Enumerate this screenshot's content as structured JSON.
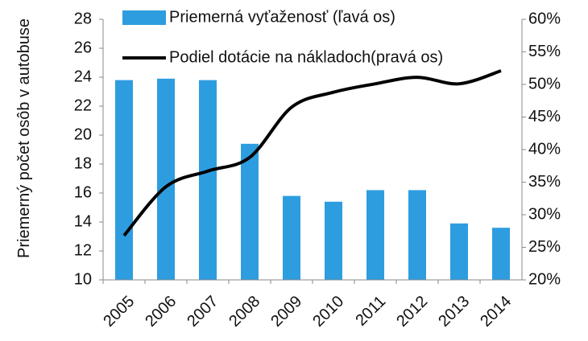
{
  "chart_data": {
    "type": "bar_line",
    "y_label": "Priemerný počet osôb v autobuse",
    "categories": [
      "2005",
      "2006",
      "2007",
      "2008",
      "2009",
      "2010",
      "2011",
      "2012",
      "2013",
      "2014"
    ],
    "series": [
      {
        "name": "Priemerná vyťaženosť (ľavá os)",
        "type": "bar",
        "color": "#2e9de0",
        "axis": "y",
        "values": [
          23.8,
          23.9,
          23.8,
          19.4,
          15.8,
          15.4,
          16.2,
          16.2,
          13.9,
          13.6
        ]
      },
      {
        "name": "Podiel dotácie na nákladoch(pravá os)",
        "type": "line",
        "color": "#000000",
        "axis": "y2",
        "values": [
          26.8,
          34.3,
          36.7,
          38.8,
          46.5,
          48.8,
          50.1,
          51.1,
          50.1,
          52.1
        ]
      }
    ],
    "ylim": [
      10,
      28
    ],
    "yticks": [
      10,
      12,
      14,
      16,
      18,
      20,
      22,
      24,
      26,
      28
    ],
    "y2lim": [
      20,
      60
    ],
    "y2ticks": [
      {
        "value": 20,
        "label": "20%"
      },
      {
        "value": 25,
        "label": "25%"
      },
      {
        "value": 30,
        "label": "30%"
      },
      {
        "value": 35,
        "label": "35%"
      },
      {
        "value": 40,
        "label": "40%"
      },
      {
        "value": 45,
        "label": "45%"
      },
      {
        "value": 50,
        "label": "50%"
      },
      {
        "value": 55,
        "label": "55%"
      },
      {
        "value": 60,
        "label": "60%"
      }
    ],
    "grid": false,
    "legend": "top"
  }
}
